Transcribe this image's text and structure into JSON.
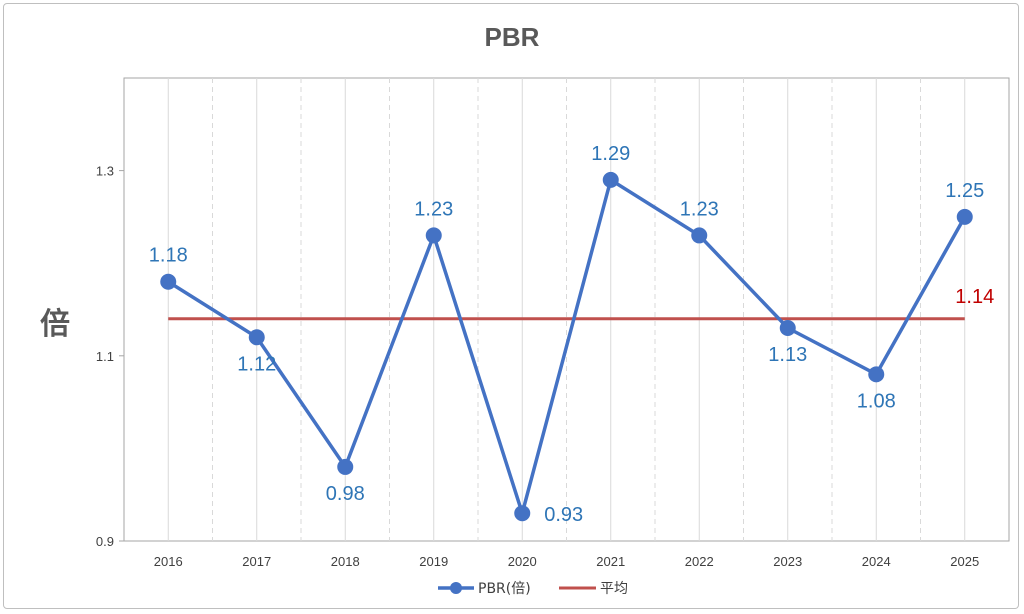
{
  "chart_data": {
    "type": "line",
    "title": "PBR",
    "ylabel": "倍",
    "xlabel": "",
    "categories": [
      "2016",
      "2017",
      "2018",
      "2019",
      "2020",
      "2021",
      "2022",
      "2023",
      "2024",
      "2025"
    ],
    "ylim": [
      0.9,
      1.4
    ],
    "yticks": [
      "0.9",
      "1.1",
      "1.3"
    ],
    "series": [
      {
        "name": "PBR(倍)",
        "color": "#4472c4",
        "values": [
          1.18,
          1.12,
          0.98,
          1.23,
          0.93,
          1.29,
          1.23,
          1.13,
          1.08,
          1.25
        ],
        "labels": [
          "1.18",
          "1.12",
          "0.98",
          "1.23",
          "0.93",
          "1.29",
          "1.23",
          "1.13",
          "1.08",
          "1.25"
        ]
      },
      {
        "name": "平均",
        "color": "#c0504d",
        "value": 1.14,
        "label": "1.14"
      }
    ],
    "grid": "vertical-dashed",
    "legend": "bottom"
  }
}
